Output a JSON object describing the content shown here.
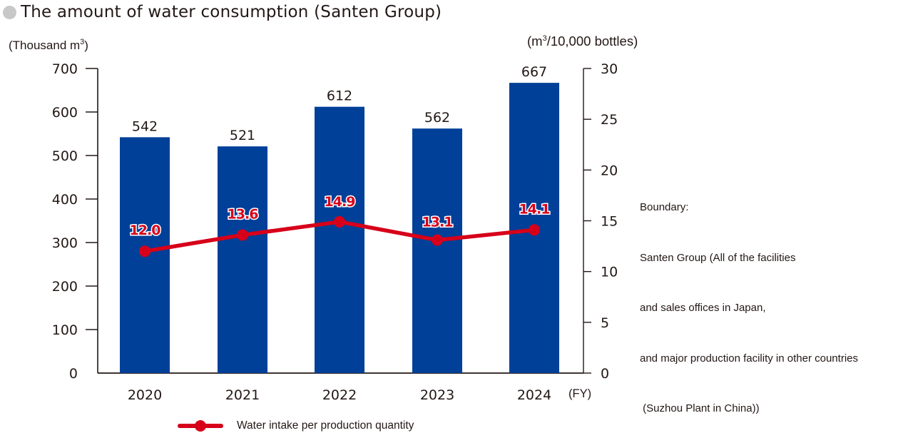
{
  "title": "The amount of water consumption (Santen Group)",
  "boundary_lines": [
    "Boundary:",
    "Santen Group (All of the facilities",
    "and sales offices in Japan,",
    "and major production facility in other countries",
    " (Suzhou Plant in China))"
  ],
  "colors": {
    "bar": "#004098",
    "line": "#d7001a",
    "axis": "#231815",
    "title_dot": "#c8c8c8"
  },
  "chart_data": {
    "type": "bar+line",
    "title": "The amount of water consumption (Santen Group)",
    "categories": [
      "2020",
      "2021",
      "2022",
      "2023",
      "2024"
    ],
    "xlabel": "(FY)",
    "y_left": {
      "label_prefix": "(Thousand m",
      "label_sup": "3",
      "label_suffix": ")",
      "range": [
        0,
        700
      ],
      "ticks": [
        "0",
        "100",
        "200",
        "300",
        "400",
        "500",
        "600",
        "700"
      ],
      "tick_values": [
        0,
        100,
        200,
        300,
        400,
        500,
        600,
        700
      ]
    },
    "y_right": {
      "label_prefix": "(m",
      "label_sup": "3",
      "label_suffix": "/10,000 bottles)",
      "range": [
        0,
        30
      ],
      "ticks": [
        "0",
        "5",
        "10",
        "15",
        "20",
        "25",
        "30"
      ],
      "tick_values": [
        0,
        5,
        10,
        15,
        20,
        25,
        30
      ]
    },
    "series": [
      {
        "name": "The amount of water consumption",
        "type": "bar",
        "axis": "left",
        "values": [
          542,
          521,
          612,
          562,
          667
        ],
        "labels": [
          "542",
          "521",
          "612",
          "562",
          "667"
        ]
      },
      {
        "name": "Water intake per production quantity",
        "type": "line",
        "axis": "right",
        "values": [
          12.0,
          13.6,
          14.9,
          13.1,
          14.1
        ],
        "labels": [
          "12.0",
          "13.6",
          "14.9",
          "13.1",
          "14.1"
        ]
      }
    ],
    "legend": {
      "entries": [
        "Water intake per production quantity"
      ],
      "placement": "bottom"
    },
    "grid": false
  }
}
